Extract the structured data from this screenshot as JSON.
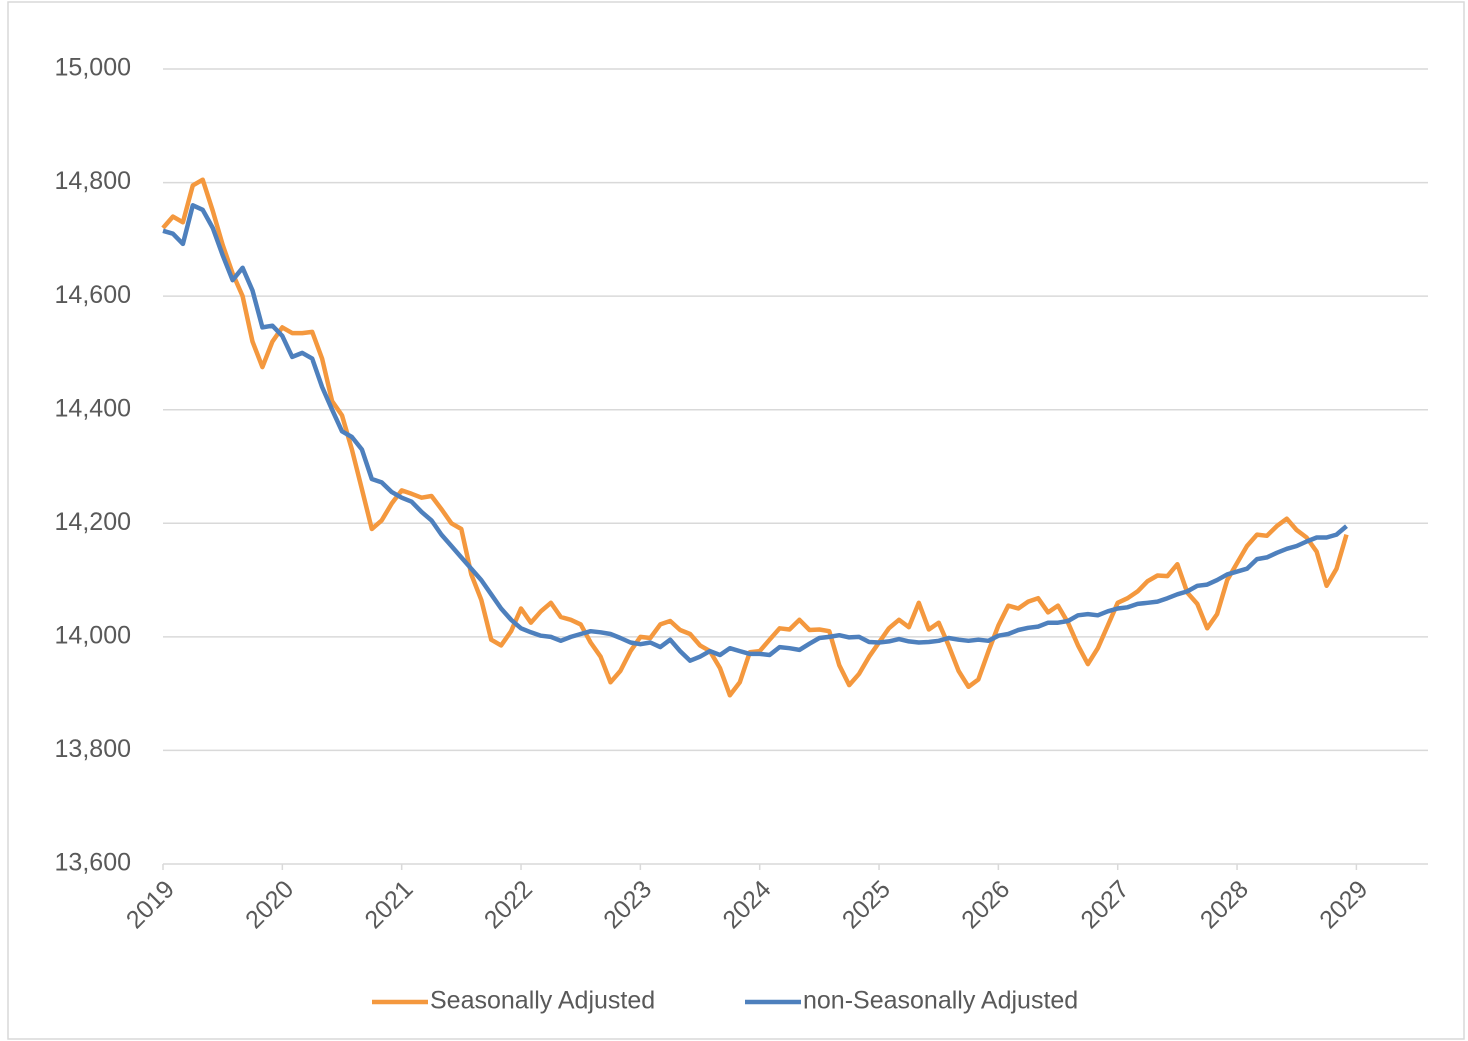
{
  "chart_data": {
    "type": "line",
    "x": [
      2019,
      2019.083,
      2019.167,
      2019.25,
      2019.333,
      2019.417,
      2019.5,
      2019.583,
      2019.667,
      2019.75,
      2019.833,
      2019.917,
      2020,
      2020.083,
      2020.167,
      2020.25,
      2020.333,
      2020.417,
      2020.5,
      2020.583,
      2020.667,
      2020.75,
      2020.833,
      2020.917,
      2021,
      2021.083,
      2021.167,
      2021.25,
      2021.333,
      2021.417,
      2021.5,
      2021.583,
      2021.667,
      2021.75,
      2021.833,
      2021.917,
      2022,
      2022.083,
      2022.167,
      2022.25,
      2022.333,
      2022.417,
      2022.5,
      2022.583,
      2022.667,
      2022.75,
      2022.833,
      2022.917,
      2023,
      2023.083,
      2023.167,
      2023.25,
      2023.333,
      2023.417,
      2023.5,
      2023.583,
      2023.667,
      2023.75,
      2023.833,
      2023.917,
      2024,
      2024.083,
      2024.167,
      2024.25,
      2024.333,
      2024.417,
      2024.5,
      2024.583,
      2024.667,
      2024.75,
      2024.833,
      2024.917,
      2025,
      2025.083,
      2025.167,
      2025.25,
      2025.333,
      2025.417,
      2025.5,
      2025.583,
      2025.667,
      2025.75,
      2025.833,
      2025.917,
      2026,
      2026.083,
      2026.167,
      2026.25,
      2026.333,
      2026.417,
      2026.5,
      2026.583,
      2026.667,
      2026.75,
      2026.833,
      2026.917,
      2027,
      2027.083,
      2027.167,
      2027.25,
      2027.333,
      2027.417,
      2027.5,
      2027.583,
      2027.667,
      2027.75,
      2027.833,
      2027.917,
      2028,
      2028.083,
      2028.167,
      2028.25,
      2028.333,
      2028.417,
      2028.5,
      2028.583,
      2028.667,
      2028.75,
      2028.833,
      2028.917
    ],
    "series": [
      {
        "name": "Seasonally Adjusted",
        "color": "#f4983e",
        "values": [
          14720,
          14740,
          14730,
          14795,
          14805,
          14750,
          14690,
          14640,
          14600,
          14520,
          14475,
          14520,
          14545,
          14535,
          14535,
          14537,
          14490,
          14415,
          14390,
          14330,
          14260,
          14190,
          14205,
          14235,
          14258,
          14252,
          14245,
          14248,
          14225,
          14200,
          14190,
          14110,
          14065,
          13995,
          13985,
          14010,
          14050,
          14025,
          14045,
          14060,
          14035,
          14030,
          14022,
          13990,
          13965,
          13920,
          13940,
          13975,
          14000,
          13998,
          14022,
          14028,
          14012,
          14005,
          13985,
          13975,
          13945,
          13897,
          13920,
          13973,
          13975,
          13995,
          14015,
          14013,
          14030,
          14012,
          14013,
          14010,
          13950,
          13915,
          13935,
          13965,
          13990,
          14015,
          14030,
          14017,
          14060,
          14013,
          14025,
          13985,
          13940,
          13912,
          13925,
          13975,
          14020,
          14055,
          14050,
          14062,
          14068,
          14043,
          14055,
          14025,
          13985,
          13952,
          13980,
          14020,
          14060,
          14068,
          14080,
          14098,
          14108,
          14107,
          14128,
          14078,
          14058,
          14015,
          14040,
          14100,
          14130,
          14160,
          14180,
          14178,
          14195,
          14208,
          14188,
          14175,
          14150,
          14090,
          14120,
          14180
        ]
      },
      {
        "name": "non-Seasonally Adjusted",
        "color": "#4e80bd",
        "values": [
          14715,
          14710,
          14692,
          14760,
          14752,
          14720,
          14672,
          14628,
          14650,
          14610,
          14545,
          14548,
          14530,
          14493,
          14500,
          14490,
          14440,
          14400,
          14362,
          14352,
          14330,
          14278,
          14272,
          14255,
          14245,
          14238,
          14220,
          14205,
          14180,
          14160,
          14140,
          14120,
          14100,
          14075,
          14050,
          14030,
          14015,
          14008,
          14002,
          14000,
          13993,
          14000,
          14005,
          14010,
          14008,
          14005,
          13998,
          13990,
          13987,
          13990,
          13982,
          13995,
          13975,
          13958,
          13965,
          13975,
          13968,
          13980,
          13975,
          13970,
          13970,
          13968,
          13982,
          13980,
          13977,
          13988,
          13998,
          14000,
          14003,
          13999,
          14000,
          13991,
          13990,
          13992,
          13996,
          13992,
          13990,
          13991,
          13993,
          13998,
          13995,
          13993,
          13995,
          13993,
          14002,
          14005,
          14012,
          14016,
          14018,
          14025,
          14025,
          14028,
          14038,
          14040,
          14038,
          14045,
          14050,
          14052,
          14058,
          14060,
          14062,
          14068,
          14075,
          14080,
          14090,
          14092,
          14100,
          14110,
          14115,
          14120,
          14137,
          14140,
          14148,
          14155,
          14160,
          14168,
          14175,
          14175,
          14180,
          14195
        ]
      }
    ],
    "xlim": [
      2019,
      2029.6
    ],
    "xticks": [
      2019,
      2020,
      2021,
      2022,
      2023,
      2024,
      2025,
      2026,
      2027,
      2028,
      2029
    ],
    "ylim": [
      13600,
      15000
    ],
    "yticks": [
      {
        "value": 13600,
        "label": "13,600"
      },
      {
        "value": 13800,
        "label": "13,800"
      },
      {
        "value": 14000,
        "label": "14,000"
      },
      {
        "value": 14200,
        "label": "14,200"
      },
      {
        "value": 14400,
        "label": "14,400"
      },
      {
        "value": 14600,
        "label": "14,600"
      },
      {
        "value": 14800,
        "label": "14,800"
      },
      {
        "value": 15000,
        "label": "15,000"
      }
    ],
    "grid": true,
    "legend": "bottom"
  }
}
